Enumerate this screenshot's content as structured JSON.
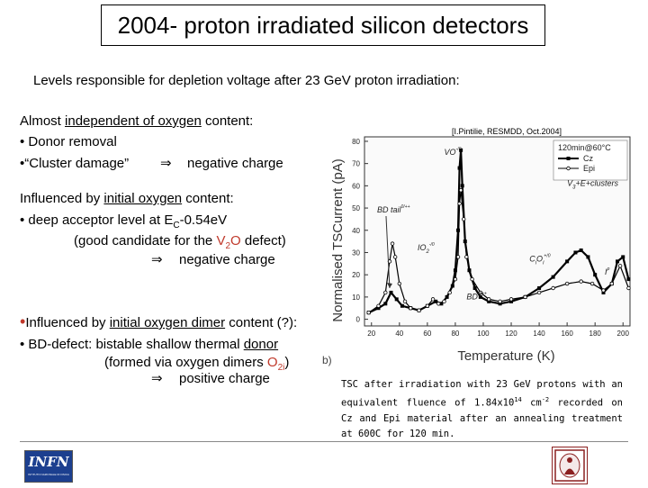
{
  "title": "2004- proton irradiated silicon detectors",
  "subtitle": "Levels responsible for depletion voltage  after 23 GeV proton irradiation:",
  "block1": {
    "line1_a": "Almost ",
    "line1_u": "independent of oxygen",
    "line1_b": " content:",
    "line2": "• Donor removal",
    "line3_a": "•“Cluster damage”",
    "arrow": "⇒",
    "line3_b": "negative charge"
  },
  "block2": {
    "line1_a": "Influenced by ",
    "line1_u": "initial oxygen",
    "line1_b": " content:",
    "line2_a": "• deep acceptor level at E",
    "line2_sub": "C",
    "line2_b": "-0.54eV",
    "line3_a": "(good candidate for the ",
    "line3_red": "V",
    "line3_red_sub": "2",
    "line3_red2": "O",
    "line3_b": " defect)",
    "arrow": "⇒",
    "line4": "negative charge"
  },
  "block3": {
    "bullet": "•",
    "line1_a": "Influenced by ",
    "line1_u": "initial oxygen dimer",
    "line1_b": " content (?):",
    "line2_a": "• BD-defect: bistable shallow thermal ",
    "line2_u": "donor",
    "line3_a": "(formed via oxygen dimers ",
    "line3_red": "O",
    "line3_red_sub": "2i",
    "line3_b": ")",
    "arrow": "⇒",
    "line4": "positive charge"
  },
  "citation": "[I.Pintilie, RESMDD, Oct.2004]",
  "panel_letter": "b)",
  "caption": {
    "p1": "TSC after irradiation with 23 GeV protons with an equivalent fluence of 1.84x10",
    "sup1": "14",
    "p2": " cm",
    "sup2": "-2",
    "p3": " recorded on Cz and Epi material after an annealing treatment at 600C for 120 min."
  },
  "logos": {
    "left_text": "INFN",
    "left_subtext": "ISTITUTO NAZIONALE DI FISICA NUCLEARE"
  },
  "chart_data": {
    "type": "line",
    "xlabel": "Temperature (K)",
    "ylabel": "Normalised TSCurrent (pA)",
    "xlim": [
      15,
      205
    ],
    "ylim": [
      -3,
      82
    ],
    "x_ticks": [
      20,
      40,
      60,
      80,
      100,
      120,
      140,
      160,
      180,
      200
    ],
    "y_ticks": [
      0,
      10,
      20,
      30,
      40,
      50,
      60,
      70,
      80
    ],
    "legend": {
      "title": "120min@60°C",
      "placement": "top-right",
      "entries": [
        "Cz",
        "Epi"
      ]
    },
    "series": [
      {
        "name": "Cz",
        "color": "#000000",
        "points": [
          [
            18,
            3
          ],
          [
            25,
            5
          ],
          [
            30,
            7
          ],
          [
            34,
            12
          ],
          [
            38,
            9
          ],
          [
            42,
            6
          ],
          [
            48,
            5
          ],
          [
            54,
            4
          ],
          [
            60,
            6
          ],
          [
            66,
            8
          ],
          [
            70,
            7
          ],
          [
            74,
            10
          ],
          [
            78,
            15
          ],
          [
            80,
            22
          ],
          [
            82,
            40
          ],
          [
            83,
            68
          ],
          [
            84,
            76
          ],
          [
            85,
            60
          ],
          [
            87,
            35
          ],
          [
            90,
            22
          ],
          [
            94,
            14
          ],
          [
            98,
            10
          ],
          [
            104,
            8
          ],
          [
            112,
            7
          ],
          [
            120,
            8
          ],
          [
            130,
            10
          ],
          [
            140,
            14
          ],
          [
            150,
            19
          ],
          [
            160,
            26
          ],
          [
            166,
            30
          ],
          [
            170,
            31
          ],
          [
            175,
            28
          ],
          [
            180,
            20
          ],
          [
            186,
            12
          ],
          [
            192,
            16
          ],
          [
            196,
            26
          ],
          [
            200,
            28
          ],
          [
            204,
            18
          ]
        ]
      },
      {
        "name": "Epi",
        "color": "#000000",
        "points": [
          [
            18,
            3
          ],
          [
            25,
            6
          ],
          [
            30,
            12
          ],
          [
            33,
            26
          ],
          [
            35,
            34
          ],
          [
            37,
            28
          ],
          [
            40,
            16
          ],
          [
            44,
            8
          ],
          [
            48,
            5
          ],
          [
            54,
            4
          ],
          [
            60,
            6
          ],
          [
            64,
            9
          ],
          [
            68,
            7
          ],
          [
            72,
            8
          ],
          [
            76,
            12
          ],
          [
            80,
            18
          ],
          [
            82,
            28
          ],
          [
            83,
            52
          ],
          [
            84,
            58
          ],
          [
            86,
            45
          ],
          [
            88,
            28
          ],
          [
            92,
            18
          ],
          [
            98,
            12
          ],
          [
            104,
            9
          ],
          [
            112,
            8
          ],
          [
            120,
            9
          ],
          [
            130,
            10
          ],
          [
            140,
            12
          ],
          [
            150,
            14
          ],
          [
            160,
            16
          ],
          [
            170,
            17
          ],
          [
            178,
            16
          ],
          [
            186,
            13
          ],
          [
            192,
            16
          ],
          [
            198,
            24
          ],
          [
            204,
            14
          ]
        ]
      }
    ],
    "annotations": [
      {
        "text": "VO",
        "sup": "-/0",
        "x": 72,
        "y": 74
      },
      {
        "text": "BD tail",
        "sup": "0/++",
        "x": 24,
        "y": 48,
        "arrow_to": [
          33,
          14
        ]
      },
      {
        "text": "IO",
        "sub": "2",
        "sup": "-/0",
        "x": 53,
        "y": 31
      },
      {
        "text": "V",
        "sub": "3",
        "tail": "+E+clusters",
        "x": 160,
        "y": 60
      },
      {
        "text": "C",
        "sub": "i",
        "tail": "O",
        "tail_sub": "i",
        "sup": "+/0",
        "x": 133,
        "y": 26
      },
      {
        "text": "BD",
        "sup": "0/++",
        "x": 88,
        "y": 9
      },
      {
        "text": "I",
        "sup": "p",
        "x": 187,
        "y": 20
      }
    ]
  }
}
